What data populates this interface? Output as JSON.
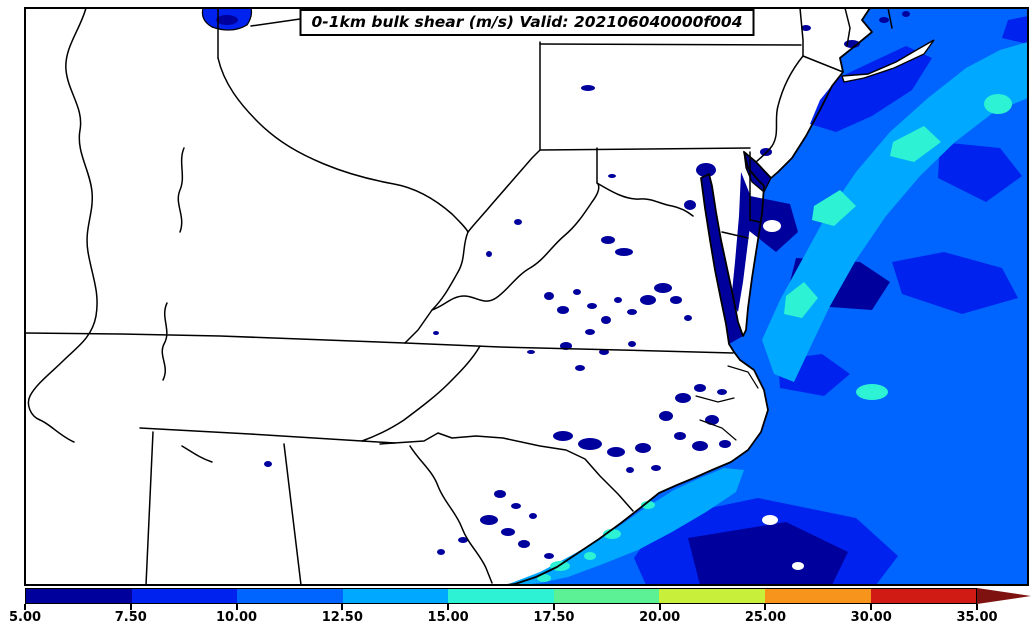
{
  "title": {
    "text": "0-1km bulk shear (m/s) Valid: 202106040000f004"
  },
  "colorbar": {
    "orientation": "horizontal",
    "tick_labels": [
      "5.00",
      "7.50",
      "10.00",
      "12.50",
      "15.00",
      "17.50",
      "20.00",
      "25.00",
      "30.00",
      "35.00"
    ],
    "tick_values": [
      5.0,
      7.5,
      10.0,
      12.5,
      15.0,
      17.5,
      20.0,
      25.0,
      30.0,
      35.0
    ],
    "segment_colors": [
      "#00009d",
      "#0022ee",
      "#0064ff",
      "#00a8ff",
      "#2df2d3",
      "#5df195",
      "#c8f03a",
      "#f7941c",
      "#d01b15"
    ],
    "over_arrow_color": "#7d1210"
  },
  "chart_data": {
    "type": "heatmap",
    "subtype": "filled-contour-weather-map",
    "title": "0-1km bulk shear (m/s) Valid: 202106040000f004",
    "variable": "0-1km bulk shear",
    "units": "m/s",
    "valid_label": "202106040000f004",
    "levels": [
      5.0,
      7.5,
      10.0,
      12.5,
      15.0,
      17.5,
      20.0,
      25.0,
      30.0,
      35.0
    ],
    "level_labels": [
      "5.00",
      "7.50",
      "10.00",
      "12.50",
      "15.00",
      "17.50",
      "20.00",
      "25.00",
      "30.00",
      "35.00"
    ],
    "level_colors": [
      "#00009d",
      "#0022ee",
      "#0064ff",
      "#00a8ff",
      "#2df2d3",
      "#5df195",
      "#c8f03a",
      "#f7941c",
      "#d01b15"
    ],
    "over_color": "#7d1210",
    "legend_position": "bottom",
    "grid": false,
    "notes": "Filled shear contours: values below 5 m/s (white) over most land; scattered 5-7.5 m/s patches inland; 7.5-15 m/s over coastal Atlantic, Chesapeake/Delaware bays and Lake Erie; 12.5-17.5 m/s band with small 15-17.5 m/s cores offshore of the mid-Atlantic and Carolina coasts."
  },
  "map": {
    "fill_palette": {
      "l1": "#00009d",
      "l2": "#0022ee",
      "l3": "#0064ff",
      "l4": "#00a8ff",
      "l5": "#2df2d3",
      "land": "#ffffff",
      "border": "#000000"
    }
  }
}
